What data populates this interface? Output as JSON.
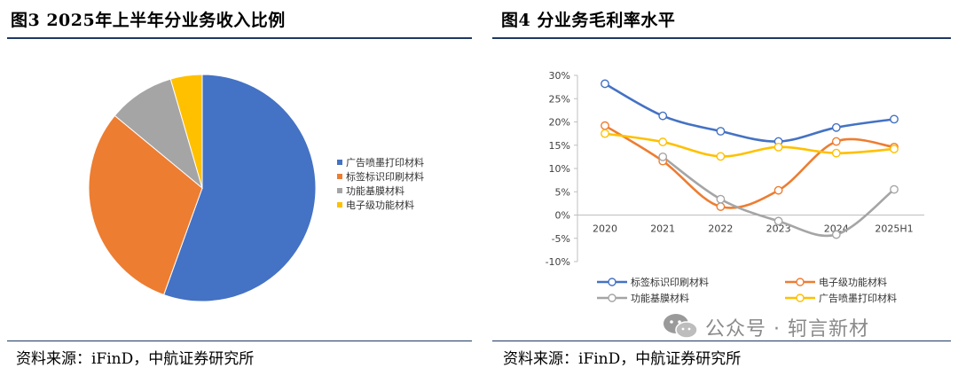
{
  "figure3": {
    "title": "图3  2025年上半年分业务收入比例",
    "source": "资料来源：iFinD，中航证券研究所"
  },
  "figure4": {
    "title": "图4  分业务毛利率水平",
    "source": "资料来源：iFinD，中航证券研究所"
  },
  "watermark": {
    "text": "公众号 · 轲言新材"
  },
  "chart_data": [
    {
      "type": "pie",
      "title": "",
      "slices": [
        {
          "name": "广告喷墨打印材料",
          "value": 55.5,
          "color": "#4472c4"
        },
        {
          "name": "标签标识印刷材料",
          "value": 30.5,
          "color": "#ed7d31"
        },
        {
          "name": "功能基膜材料",
          "value": 9.5,
          "color": "#a5a5a5"
        },
        {
          "name": "电子级功能材料",
          "value": 4.5,
          "color": "#ffc000"
        }
      ],
      "legend_position": "right"
    },
    {
      "type": "line",
      "title": "",
      "x": [
        "2020",
        "2021",
        "2022",
        "2023",
        "2024",
        "2025H1"
      ],
      "ylim": [
        -10,
        30
      ],
      "yticks": [
        "-10%",
        "-5%",
        "0%",
        "5%",
        "10%",
        "15%",
        "20%",
        "25%",
        "30%"
      ],
      "grid": false,
      "legend_position": "bottom",
      "smooth": true,
      "series": [
        {
          "name": "标签标识印刷材料",
          "color": "#4472c4",
          "values": [
            28.2,
            21.3,
            18.0,
            15.8,
            18.8,
            20.6
          ]
        },
        {
          "name": "电子级功能材料",
          "color": "#ed7d31",
          "values": [
            19.2,
            11.6,
            1.8,
            5.3,
            15.8,
            14.6
          ]
        },
        {
          "name": "功能基膜材料",
          "color": "#a5a5a5",
          "values": [
            null,
            12.5,
            3.4,
            -1.3,
            -4.2,
            5.5
          ]
        },
        {
          "name": "广告喷墨打印材料",
          "color": "#ffc000",
          "values": [
            17.5,
            15.7,
            12.6,
            14.6,
            13.3,
            14.2
          ]
        }
      ]
    }
  ]
}
